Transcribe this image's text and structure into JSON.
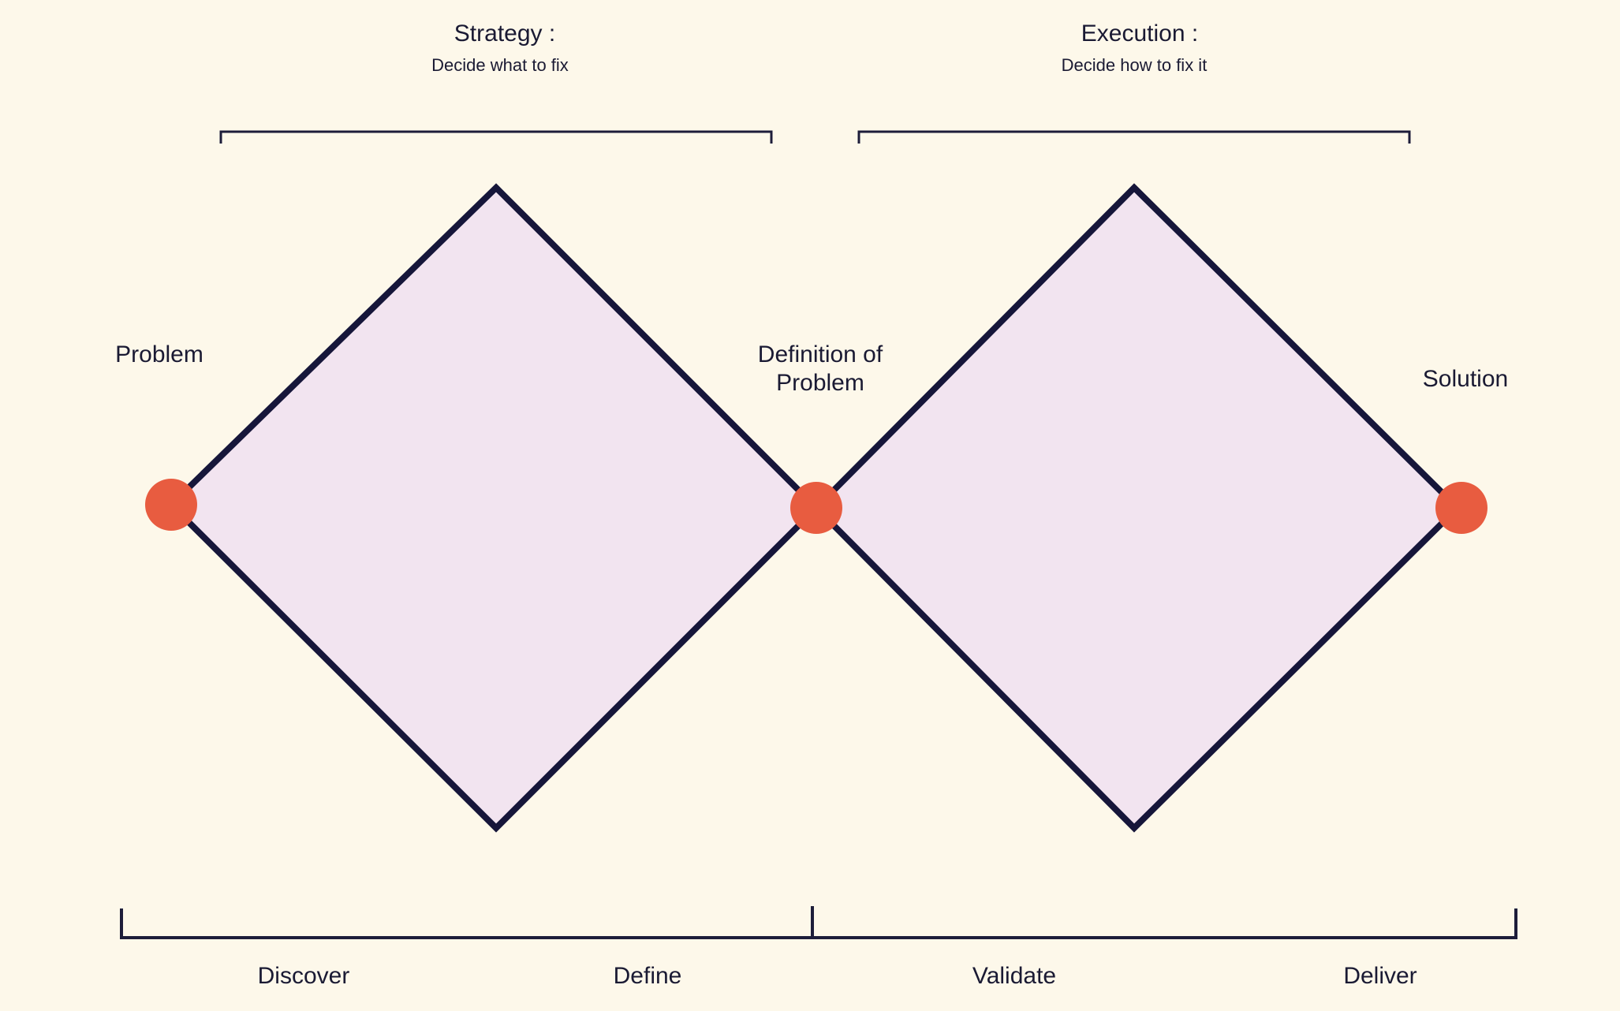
{
  "headers": {
    "strategy": {
      "title": "Strategy :",
      "subtitle": "Decide what to fix"
    },
    "execution": {
      "title": "Execution :",
      "subtitle": "Decide how to fix it"
    }
  },
  "nodes": {
    "problem": "Problem",
    "definition_line1": "Definition of",
    "definition_line2": "Problem",
    "solution": "Solution"
  },
  "phases": {
    "discover": "Discover",
    "define": "Define",
    "validate": "Validate",
    "deliver": "Deliver"
  },
  "colors": {
    "background": "#fdf8ea",
    "diamond_fill": "#f2e4f0",
    "outline": "#16163a",
    "node": "#e85c40",
    "text": "#1a1a33"
  }
}
